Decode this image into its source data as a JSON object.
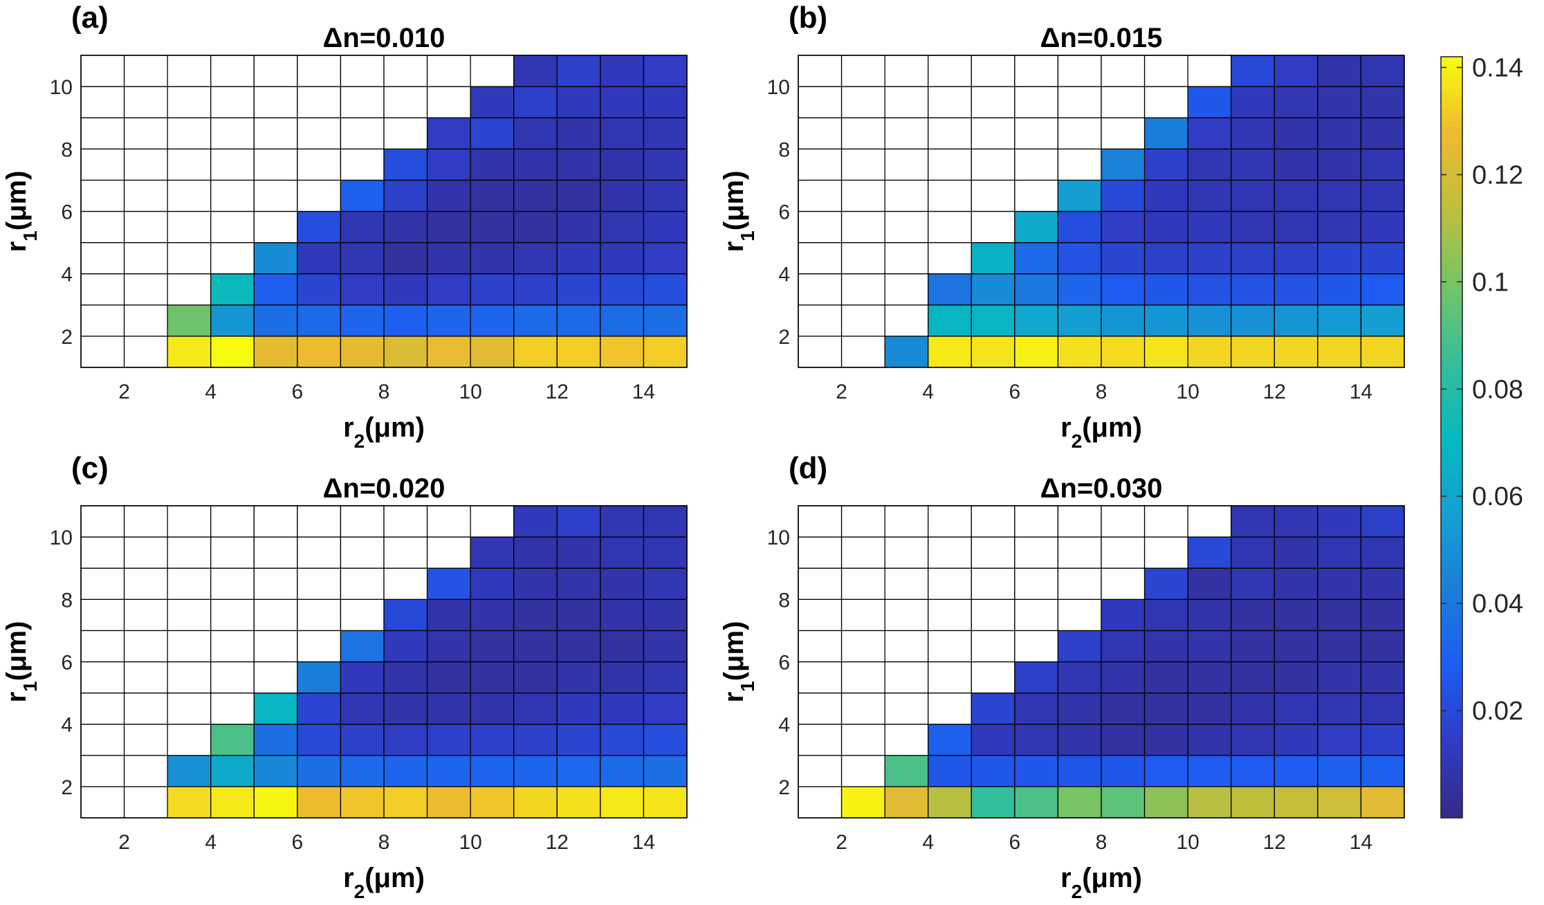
{
  "figure": {
    "colormap": "parula",
    "empty_cell_color": "#ffffff",
    "grid_line_color": "#000000",
    "colorbar": {
      "ticks": [
        0.02,
        0.04,
        0.06,
        0.08,
        0.1,
        0.12,
        0.14
      ],
      "tick_labels": [
        "0.02",
        "0.04",
        "0.06",
        "0.08",
        "0.1",
        "0.12",
        "0.14"
      ],
      "clim": [
        0.0,
        0.142
      ]
    }
  },
  "chart_data": [
    {
      "type": "heatmap",
      "panel_label": "(a)",
      "title": "Δn=0.010",
      "xlabel": "r2(μm)",
      "ylabel": "r1(μm)",
      "xlabel_main": "r",
      "xlabel_sub": "2",
      "xlabel_unit": "(μm)",
      "ylabel_main": "r",
      "ylabel_sub": "1",
      "ylabel_unit": "(μm)",
      "x": [
        1,
        2,
        3,
        4,
        5,
        6,
        7,
        8,
        9,
        10,
        11,
        12,
        13,
        14
      ],
      "y": [
        1,
        2,
        3,
        4,
        5,
        6,
        7,
        8,
        9,
        10
      ],
      "xlim": [
        1,
        15
      ],
      "ylim": [
        1,
        11
      ],
      "xticks": [
        2,
        4,
        6,
        8,
        10,
        12,
        14
      ],
      "xtick_labels": [
        "2",
        "4",
        "6",
        "8",
        "10",
        "12",
        "14"
      ],
      "yticks": [
        2,
        4,
        6,
        8,
        10
      ],
      "ytick_labels": [
        "2",
        "4",
        "6",
        "8",
        "10"
      ],
      "values": [
        [
          null,
          null,
          0.138,
          0.142,
          0.125,
          0.128,
          0.125,
          0.122,
          0.126,
          0.124,
          0.132,
          0.132,
          0.13,
          0.132
        ],
        [
          null,
          null,
          0.098,
          0.052,
          0.036,
          0.034,
          0.032,
          0.03,
          0.032,
          0.032,
          0.034,
          0.034,
          0.035,
          0.036
        ],
        [
          null,
          null,
          null,
          0.072,
          0.03,
          0.018,
          0.014,
          0.012,
          0.014,
          0.016,
          0.016,
          0.018,
          0.02,
          0.022
        ],
        [
          null,
          null,
          null,
          null,
          0.048,
          0.012,
          0.01,
          0.006,
          0.008,
          0.008,
          0.01,
          0.012,
          0.012,
          0.014
        ],
        [
          null,
          null,
          null,
          null,
          null,
          0.022,
          0.01,
          0.008,
          0.006,
          0.006,
          0.006,
          0.008,
          0.01,
          0.012
        ],
        [
          null,
          null,
          null,
          null,
          null,
          null,
          0.03,
          0.016,
          0.008,
          0.006,
          0.006,
          0.006,
          0.008,
          0.01
        ],
        [
          null,
          null,
          null,
          null,
          null,
          null,
          null,
          0.022,
          0.014,
          0.008,
          0.008,
          0.008,
          0.008,
          0.01
        ],
        [
          null,
          null,
          null,
          null,
          null,
          null,
          null,
          null,
          0.014,
          0.018,
          0.01,
          0.008,
          0.01,
          0.01
        ],
        [
          null,
          null,
          null,
          null,
          null,
          null,
          null,
          null,
          null,
          0.012,
          0.016,
          0.012,
          0.012,
          0.012
        ],
        [
          null,
          null,
          null,
          null,
          null,
          null,
          null,
          null,
          null,
          null,
          0.01,
          0.016,
          0.012,
          0.014
        ]
      ]
    },
    {
      "type": "heatmap",
      "panel_label": "(b)",
      "title": "Δn=0.015",
      "xlabel": "r2(μm)",
      "ylabel": "r1(μm)",
      "xlabel_main": "r",
      "xlabel_sub": "2",
      "xlabel_unit": "(μm)",
      "ylabel_main": "r",
      "ylabel_sub": "1",
      "ylabel_unit": "(μm)",
      "x": [
        1,
        2,
        3,
        4,
        5,
        6,
        7,
        8,
        9,
        10,
        11,
        12,
        13,
        14
      ],
      "y": [
        1,
        2,
        3,
        4,
        5,
        6,
        7,
        8,
        9,
        10
      ],
      "xlim": [
        1,
        15
      ],
      "ylim": [
        1,
        11
      ],
      "xticks": [
        2,
        4,
        6,
        8,
        10,
        12,
        14
      ],
      "xtick_labels": [
        "2",
        "4",
        "6",
        "8",
        "10",
        "12",
        "14"
      ],
      "yticks": [
        2,
        4,
        6,
        8,
        10
      ],
      "ytick_labels": [
        "2",
        "4",
        "6",
        "8",
        "10"
      ],
      "values": [
        [
          null,
          null,
          0.048,
          0.138,
          0.137,
          0.14,
          0.136,
          0.135,
          0.137,
          0.134,
          0.134,
          0.134,
          0.134,
          0.134
        ],
        [
          null,
          null,
          null,
          0.068,
          0.068,
          0.06,
          0.056,
          0.052,
          0.052,
          0.05,
          0.05,
          0.052,
          0.054,
          0.056
        ],
        [
          null,
          null,
          null,
          0.038,
          0.048,
          0.04,
          0.032,
          0.028,
          0.026,
          0.024,
          0.024,
          0.024,
          0.026,
          0.028
        ],
        [
          null,
          null,
          null,
          null,
          0.066,
          0.034,
          0.024,
          0.018,
          0.016,
          0.016,
          0.016,
          0.016,
          0.018,
          0.018
        ],
        [
          null,
          null,
          null,
          null,
          null,
          0.062,
          0.022,
          0.014,
          0.012,
          0.012,
          0.01,
          0.01,
          0.01,
          0.012
        ],
        [
          null,
          null,
          null,
          null,
          null,
          null,
          0.056,
          0.02,
          0.012,
          0.01,
          0.01,
          0.01,
          0.01,
          0.01
        ],
        [
          null,
          null,
          null,
          null,
          null,
          null,
          null,
          0.044,
          0.016,
          0.01,
          0.01,
          0.008,
          0.008,
          0.01
        ],
        [
          null,
          null,
          null,
          null,
          null,
          null,
          null,
          null,
          0.042,
          0.014,
          0.01,
          0.008,
          0.008,
          0.008
        ],
        [
          null,
          null,
          null,
          null,
          null,
          null,
          null,
          null,
          null,
          0.026,
          0.012,
          0.01,
          0.008,
          0.008
        ],
        [
          null,
          null,
          null,
          null,
          null,
          null,
          null,
          null,
          null,
          null,
          0.02,
          0.014,
          0.008,
          0.01
        ]
      ]
    },
    {
      "type": "heatmap",
      "panel_label": "(c)",
      "title": "Δn=0.020",
      "xlabel": "r2(μm)",
      "ylabel": "r1(μm)",
      "xlabel_main": "r",
      "xlabel_sub": "2",
      "xlabel_unit": "(μm)",
      "ylabel_main": "r",
      "ylabel_sub": "1",
      "ylabel_unit": "(μm)",
      "x": [
        1,
        2,
        3,
        4,
        5,
        6,
        7,
        8,
        9,
        10,
        11,
        12,
        13,
        14
      ],
      "y": [
        1,
        2,
        3,
        4,
        5,
        6,
        7,
        8,
        9,
        10
      ],
      "xlim": [
        1,
        15
      ],
      "ylim": [
        1,
        11
      ],
      "xticks": [
        2,
        4,
        6,
        8,
        10,
        12,
        14
      ],
      "xtick_labels": [
        "2",
        "4",
        "6",
        "8",
        "10",
        "12",
        "14"
      ],
      "yticks": [
        2,
        4,
        6,
        8,
        10
      ],
      "ytick_labels": [
        "2",
        "4",
        "6",
        "8",
        "10"
      ],
      "values": [
        [
          null,
          null,
          0.135,
          0.138,
          0.141,
          0.128,
          0.13,
          0.132,
          0.128,
          0.13,
          0.134,
          0.136,
          0.138,
          0.137
        ],
        [
          null,
          null,
          0.05,
          0.062,
          0.046,
          0.036,
          0.034,
          0.032,
          0.032,
          0.032,
          0.032,
          0.033,
          0.034,
          0.036
        ],
        [
          null,
          null,
          null,
          0.09,
          0.036,
          0.02,
          0.016,
          0.014,
          0.016,
          0.016,
          0.016,
          0.018,
          0.02,
          0.022
        ],
        [
          null,
          null,
          null,
          null,
          0.068,
          0.018,
          0.01,
          0.008,
          0.008,
          0.008,
          0.01,
          0.012,
          0.012,
          0.014
        ],
        [
          null,
          null,
          null,
          null,
          null,
          0.042,
          0.012,
          0.008,
          0.006,
          0.006,
          0.006,
          0.008,
          0.008,
          0.01
        ],
        [
          null,
          null,
          null,
          null,
          null,
          null,
          0.038,
          0.012,
          0.008,
          0.006,
          0.006,
          0.006,
          0.006,
          0.008
        ],
        [
          null,
          null,
          null,
          null,
          null,
          null,
          null,
          0.02,
          0.008,
          0.008,
          0.006,
          0.006,
          0.008,
          0.008
        ],
        [
          null,
          null,
          null,
          null,
          null,
          null,
          null,
          null,
          0.024,
          0.012,
          0.008,
          0.008,
          0.008,
          0.01
        ],
        [
          null,
          null,
          null,
          null,
          null,
          null,
          null,
          null,
          null,
          0.01,
          0.008,
          0.008,
          0.01,
          0.01
        ],
        [
          null,
          null,
          null,
          null,
          null,
          null,
          null,
          null,
          null,
          null,
          0.012,
          0.016,
          0.01,
          0.01
        ]
      ]
    },
    {
      "type": "heatmap",
      "panel_label": "(d)",
      "title": "Δn=0.030",
      "xlabel": "r2(μm)",
      "ylabel": "r1(μm)",
      "xlabel_main": "r",
      "xlabel_sub": "2",
      "xlabel_unit": "(μm)",
      "ylabel_main": "r",
      "ylabel_sub": "1",
      "ylabel_unit": "(μm)",
      "x": [
        1,
        2,
        3,
        4,
        5,
        6,
        7,
        8,
        9,
        10,
        11,
        12,
        13,
        14
      ],
      "y": [
        1,
        2,
        3,
        4,
        5,
        6,
        7,
        8,
        9,
        10
      ],
      "xlim": [
        1,
        15
      ],
      "ylim": [
        1,
        11
      ],
      "xticks": [
        2,
        4,
        6,
        8,
        10,
        12,
        14
      ],
      "xtick_labels": [
        "2",
        "4",
        "6",
        "8",
        "10",
        "12",
        "14"
      ],
      "yticks": [
        2,
        4,
        6,
        8,
        10
      ],
      "ytick_labels": [
        "2",
        "4",
        "6",
        "8",
        "10"
      ],
      "values": [
        [
          null,
          0.14,
          0.124,
          0.112,
          0.084,
          0.09,
          0.1,
          0.094,
          0.104,
          0.112,
          0.114,
          0.116,
          0.118,
          0.124
        ],
        [
          null,
          null,
          0.09,
          0.026,
          0.026,
          0.026,
          0.026,
          0.026,
          0.028,
          0.028,
          0.028,
          0.028,
          0.03,
          0.03
        ],
        [
          null,
          null,
          null,
          0.03,
          0.012,
          0.01,
          0.008,
          0.006,
          0.006,
          0.008,
          0.01,
          0.012,
          0.014,
          0.016
        ],
        [
          null,
          null,
          null,
          null,
          0.018,
          0.01,
          0.008,
          0.006,
          0.006,
          0.006,
          0.008,
          0.01,
          0.01,
          0.01
        ],
        [
          null,
          null,
          null,
          null,
          null,
          0.016,
          0.01,
          0.008,
          0.006,
          0.006,
          0.006,
          0.006,
          0.008,
          0.008
        ],
        [
          null,
          null,
          null,
          null,
          null,
          null,
          0.016,
          0.01,
          0.008,
          0.008,
          0.006,
          0.006,
          0.006,
          0.006
        ],
        [
          null,
          null,
          null,
          null,
          null,
          null,
          null,
          0.012,
          0.01,
          0.008,
          0.006,
          0.006,
          0.006,
          0.006
        ],
        [
          null,
          null,
          null,
          null,
          null,
          null,
          null,
          null,
          0.018,
          0.006,
          0.01,
          0.008,
          0.008,
          0.008
        ],
        [
          null,
          null,
          null,
          null,
          null,
          null,
          null,
          null,
          null,
          0.02,
          0.01,
          0.008,
          0.01,
          0.01
        ],
        [
          null,
          null,
          null,
          null,
          null,
          null,
          null,
          null,
          null,
          null,
          0.01,
          0.01,
          0.012,
          0.016
        ]
      ]
    }
  ]
}
